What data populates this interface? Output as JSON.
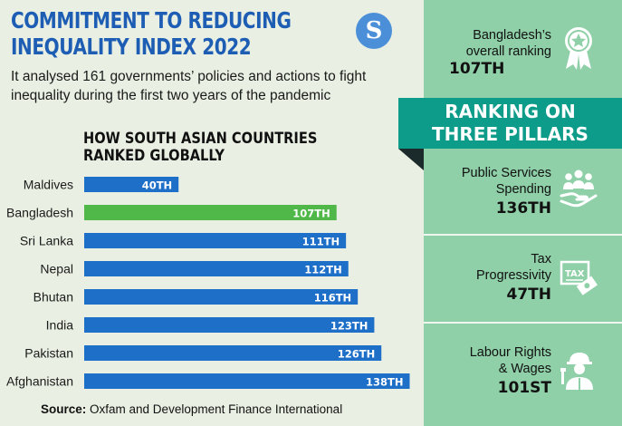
{
  "header": {
    "title_line1": "COMMITMENT TO REDUCING",
    "title_line2": "INEQUALITY INDEX 2022",
    "subtitle": "It analysed 161 governments’ policies and actions to fight inequality during the first two years of the pandemic",
    "logo_letter": "S"
  },
  "chart_data": {
    "type": "bar",
    "orientation": "horizontal",
    "title_line1": "HOW SOUTH ASIAN COUNTRIES",
    "title_line2": "RANKED GLOBALLY",
    "categories": [
      "Maldives",
      "Bangladesh",
      "Sri Lanka",
      "Nepal",
      "Bhutan",
      "India",
      "Pakistan",
      "Afghanistan"
    ],
    "values": [
      40,
      107,
      111,
      112,
      116,
      123,
      126,
      138
    ],
    "labels": [
      "40TH",
      "107TH",
      "111TH",
      "112TH",
      "116TH",
      "123TH",
      "126TH",
      "138TH"
    ],
    "highlight": "Bangladesh",
    "colors": {
      "default": "#1e6fc8",
      "highlight": "#4fb848"
    }
  },
  "source": {
    "label": "Source:",
    "text": "Oxfam and Development Finance International"
  },
  "sidebar": {
    "overall_label_line1": "Bangladesh’s",
    "overall_label_line2": "overall ranking",
    "overall_rank": "107TH",
    "banner_line1": "RANKING ON",
    "banner_line2": "THREE PILLARS",
    "pillars": [
      {
        "label_line1": "Public Services",
        "label_line2": "Spending",
        "rank": "136TH",
        "icon": "people-hand-icon"
      },
      {
        "label_line1": "Tax",
        "label_line2": "Progressivity",
        "rank": "47TH",
        "icon": "tax-document-icon"
      },
      {
        "label_line1": "Labour Rights",
        "label_line2": "& Wages",
        "rank": "101ST",
        "icon": "worker-icon"
      }
    ],
    "colors": {
      "panel": "#8fd0a8",
      "banner": "#0e9c8a"
    }
  }
}
